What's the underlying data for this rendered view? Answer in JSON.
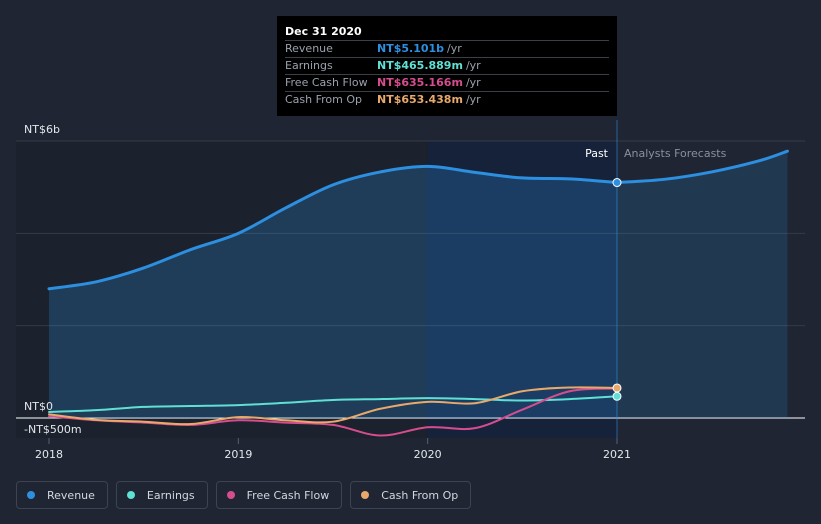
{
  "tooltip": {
    "date": "Dec 31 2020",
    "rows": [
      {
        "label": "Revenue",
        "value": "NT$5.101b",
        "unit": "/yr",
        "color": "#2d8fe0"
      },
      {
        "label": "Earnings",
        "value": "NT$465.889m",
        "unit": "/yr",
        "color": "#5fe0d4"
      },
      {
        "label": "Free Cash Flow",
        "value": "NT$635.166m",
        "unit": "/yr",
        "color": "#d64d8f"
      },
      {
        "label": "Cash From Op",
        "value": "NT$653.438m",
        "unit": "/yr",
        "color": "#e9a96a"
      }
    ]
  },
  "legend": [
    {
      "label": "Revenue",
      "color": "#2d8fe0"
    },
    {
      "label": "Earnings",
      "color": "#5fe0d4"
    },
    {
      "label": "Free Cash Flow",
      "color": "#d64d8f"
    },
    {
      "label": "Cash From Op",
      "color": "#e9a96a"
    }
  ],
  "chart_data": {
    "type": "line",
    "title": "",
    "xlabel": "",
    "ylabel": "",
    "ylim": [
      -0.5,
      6
    ],
    "xlim": [
      2017.9,
      2021.9
    ],
    "y_tick_labels": [
      {
        "label": "NT$6b",
        "value": 6
      },
      {
        "label": "NT$0",
        "value": 0
      },
      {
        "label": "-NT$500m",
        "value": -0.5
      }
    ],
    "x_ticks": [
      {
        "label": "2018",
        "value": 2018
      },
      {
        "label": "2019",
        "value": 2019
      },
      {
        "label": "2020",
        "value": 2020
      },
      {
        "label": "2021",
        "value": 2021
      }
    ],
    "gridlines": [
      6,
      4,
      2,
      0
    ],
    "highlight_range": [
      2020,
      2021
    ],
    "past_label": "Past",
    "forecast_label": "Analysts Forecasts",
    "divider_x": 2021,
    "series": [
      {
        "name": "Revenue",
        "color": "#2d8fe0",
        "area": true,
        "points": [
          [
            2018,
            2.8
          ],
          [
            2018.25,
            2.95
          ],
          [
            2018.5,
            3.25
          ],
          [
            2018.75,
            3.65
          ],
          [
            2019,
            4.0
          ],
          [
            2019.25,
            4.55
          ],
          [
            2019.5,
            5.05
          ],
          [
            2019.75,
            5.33
          ],
          [
            2020,
            5.45
          ],
          [
            2020.25,
            5.32
          ],
          [
            2020.5,
            5.2
          ],
          [
            2020.75,
            5.18
          ],
          [
            2021,
            5.1
          ]
        ]
      },
      {
        "name": "Revenue Forecast",
        "color": "#2d8fe0",
        "area": true,
        "points": [
          [
            2021,
            5.1
          ],
          [
            2021.25,
            5.17
          ],
          [
            2021.5,
            5.33
          ],
          [
            2021.75,
            5.57
          ],
          [
            2021.9,
            5.78
          ]
        ]
      },
      {
        "name": "Earnings",
        "color": "#5fe0d4",
        "area": false,
        "points": [
          [
            2018,
            0.13
          ],
          [
            2018.25,
            0.17
          ],
          [
            2018.5,
            0.24
          ],
          [
            2018.75,
            0.26
          ],
          [
            2019,
            0.28
          ],
          [
            2019.25,
            0.33
          ],
          [
            2019.5,
            0.39
          ],
          [
            2019.75,
            0.41
          ],
          [
            2020,
            0.43
          ],
          [
            2020.25,
            0.41
          ],
          [
            2020.5,
            0.38
          ],
          [
            2020.75,
            0.41
          ],
          [
            2021,
            0.47
          ]
        ]
      },
      {
        "name": "Free Cash Flow",
        "color": "#d64d8f",
        "area": false,
        "points": [
          [
            2018,
            0.04
          ],
          [
            2018.25,
            -0.05
          ],
          [
            2018.5,
            -0.1
          ],
          [
            2018.75,
            -0.15
          ],
          [
            2019,
            -0.05
          ],
          [
            2019.25,
            -0.1
          ],
          [
            2019.5,
            -0.15
          ],
          [
            2019.75,
            -0.38
          ],
          [
            2020,
            -0.2
          ],
          [
            2020.25,
            -0.22
          ],
          [
            2020.5,
            0.18
          ],
          [
            2020.75,
            0.58
          ],
          [
            2021,
            0.64
          ]
        ]
      },
      {
        "name": "Cash From Op",
        "color": "#e9a96a",
        "area": false,
        "points": [
          [
            2018,
            0.08
          ],
          [
            2018.25,
            -0.04
          ],
          [
            2018.5,
            -0.08
          ],
          [
            2018.75,
            -0.13
          ],
          [
            2019,
            0.02
          ],
          [
            2019.25,
            -0.05
          ],
          [
            2019.5,
            -0.08
          ],
          [
            2019.75,
            0.2
          ],
          [
            2020,
            0.35
          ],
          [
            2020.25,
            0.32
          ],
          [
            2020.5,
            0.58
          ],
          [
            2020.75,
            0.66
          ],
          [
            2021,
            0.65
          ]
        ]
      }
    ],
    "markers": [
      {
        "series": "Revenue",
        "x": 2021,
        "y": 5.1,
        "color": "#2d8fe0"
      },
      {
        "series": "Earnings",
        "x": 2021,
        "y": 0.47,
        "color": "#5fe0d4"
      },
      {
        "series": "Cash From Op",
        "x": 2021,
        "y": 0.65,
        "color": "#e9a96a"
      }
    ]
  }
}
